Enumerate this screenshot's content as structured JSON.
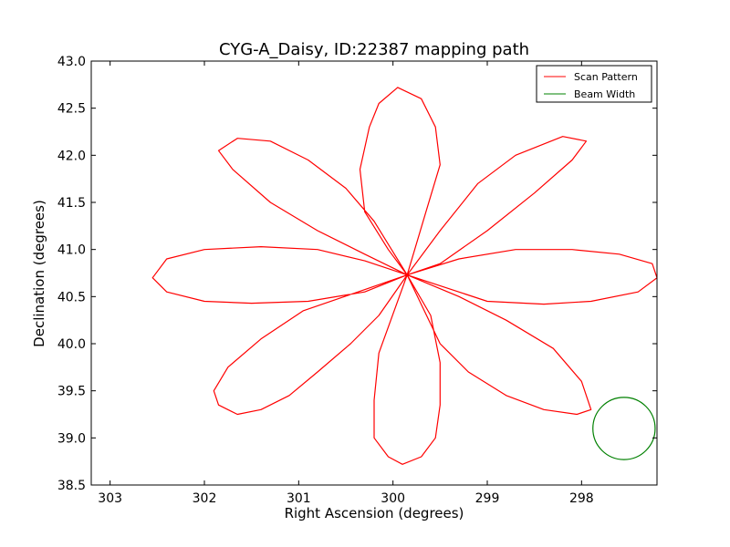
{
  "chart_data": {
    "type": "line",
    "title": "CYG-A_Daisy, ID:22387 mapping path",
    "xlabel": "Right Ascension (degrees)",
    "ylabel": "Declination (degrees)",
    "xlim": [
      303.2,
      297.2
    ],
    "ylim": [
      38.5,
      43.0
    ],
    "x_ticks": [
      303,
      302,
      301,
      300,
      299,
      298
    ],
    "y_ticks": [
      38.5,
      39.0,
      39.5,
      40.0,
      40.5,
      41.0,
      41.5,
      42.0,
      42.5,
      43.0
    ],
    "x_tick_labels": [
      "303",
      "302",
      "301",
      "300",
      "299",
      "298"
    ],
    "y_tick_labels": [
      "38.5",
      "39.0",
      "39.5",
      "40.0",
      "40.5",
      "41.0",
      "41.5",
      "42.0",
      "42.5",
      "43.0"
    ],
    "grid": false,
    "legend_position": "top-right",
    "series": [
      {
        "name": "Scan Pattern",
        "color": "#ff0000",
        "points": [
          [
            299.85,
            40.73
          ],
          [
            300.05,
            41.0
          ],
          [
            300.3,
            41.4
          ],
          [
            300.35,
            41.85
          ],
          [
            300.25,
            42.3
          ],
          [
            300.15,
            42.55
          ],
          [
            299.95,
            42.72
          ],
          [
            299.7,
            42.6
          ],
          [
            299.55,
            42.3
          ],
          [
            299.5,
            41.9
          ],
          [
            299.65,
            41.4
          ],
          [
            299.85,
            40.73
          ],
          [
            299.5,
            40.85
          ],
          [
            299.0,
            41.2
          ],
          [
            298.5,
            41.6
          ],
          [
            298.1,
            41.95
          ],
          [
            297.95,
            42.15
          ],
          [
            298.2,
            42.2
          ],
          [
            298.7,
            42.0
          ],
          [
            299.1,
            41.7
          ],
          [
            299.5,
            41.2
          ],
          [
            299.85,
            40.73
          ],
          [
            299.3,
            40.9
          ],
          [
            298.7,
            41.0
          ],
          [
            298.1,
            41.0
          ],
          [
            297.6,
            40.95
          ],
          [
            297.25,
            40.85
          ],
          [
            297.2,
            40.7
          ],
          [
            297.4,
            40.55
          ],
          [
            297.9,
            40.45
          ],
          [
            298.4,
            40.42
          ],
          [
            299.0,
            40.45
          ],
          [
            299.85,
            40.73
          ],
          [
            299.3,
            40.5
          ],
          [
            298.8,
            40.25
          ],
          [
            298.3,
            39.95
          ],
          [
            298.0,
            39.6
          ],
          [
            297.9,
            39.3
          ],
          [
            298.05,
            39.25
          ],
          [
            298.4,
            39.3
          ],
          [
            298.8,
            39.45
          ],
          [
            299.2,
            39.7
          ],
          [
            299.5,
            40.0
          ],
          [
            299.85,
            40.73
          ],
          [
            299.6,
            40.3
          ],
          [
            299.5,
            39.8
          ],
          [
            299.5,
            39.35
          ],
          [
            299.55,
            39.0
          ],
          [
            299.7,
            38.8
          ],
          [
            299.9,
            38.72
          ],
          [
            300.05,
            38.8
          ],
          [
            300.2,
            39.0
          ],
          [
            300.2,
            39.4
          ],
          [
            300.15,
            39.9
          ],
          [
            299.85,
            40.73
          ],
          [
            300.15,
            40.3
          ],
          [
            300.45,
            40.0
          ],
          [
            300.8,
            39.7
          ],
          [
            301.1,
            39.45
          ],
          [
            301.4,
            39.3
          ],
          [
            301.65,
            39.25
          ],
          [
            301.85,
            39.35
          ],
          [
            301.9,
            39.5
          ],
          [
            301.75,
            39.75
          ],
          [
            301.4,
            40.05
          ],
          [
            300.95,
            40.35
          ],
          [
            299.85,
            40.73
          ],
          [
            300.3,
            40.55
          ],
          [
            300.9,
            40.45
          ],
          [
            301.5,
            40.43
          ],
          [
            302.0,
            40.45
          ],
          [
            302.4,
            40.55
          ],
          [
            302.55,
            40.7
          ],
          [
            302.4,
            40.9
          ],
          [
            302.0,
            41.0
          ],
          [
            301.4,
            41.03
          ],
          [
            300.8,
            41.0
          ],
          [
            300.3,
            40.88
          ],
          [
            299.85,
            40.73
          ],
          [
            300.3,
            40.95
          ],
          [
            300.8,
            41.2
          ],
          [
            301.3,
            41.5
          ],
          [
            301.7,
            41.85
          ],
          [
            301.85,
            42.05
          ],
          [
            301.65,
            42.18
          ],
          [
            301.3,
            42.15
          ],
          [
            300.9,
            41.95
          ],
          [
            300.5,
            41.65
          ],
          [
            300.2,
            41.3
          ],
          [
            299.85,
            40.73
          ]
        ]
      },
      {
        "name": "Beam Width",
        "color": "#008000",
        "circle": {
          "center": [
            297.55,
            39.1
          ],
          "radius": 0.33
        }
      }
    ]
  }
}
